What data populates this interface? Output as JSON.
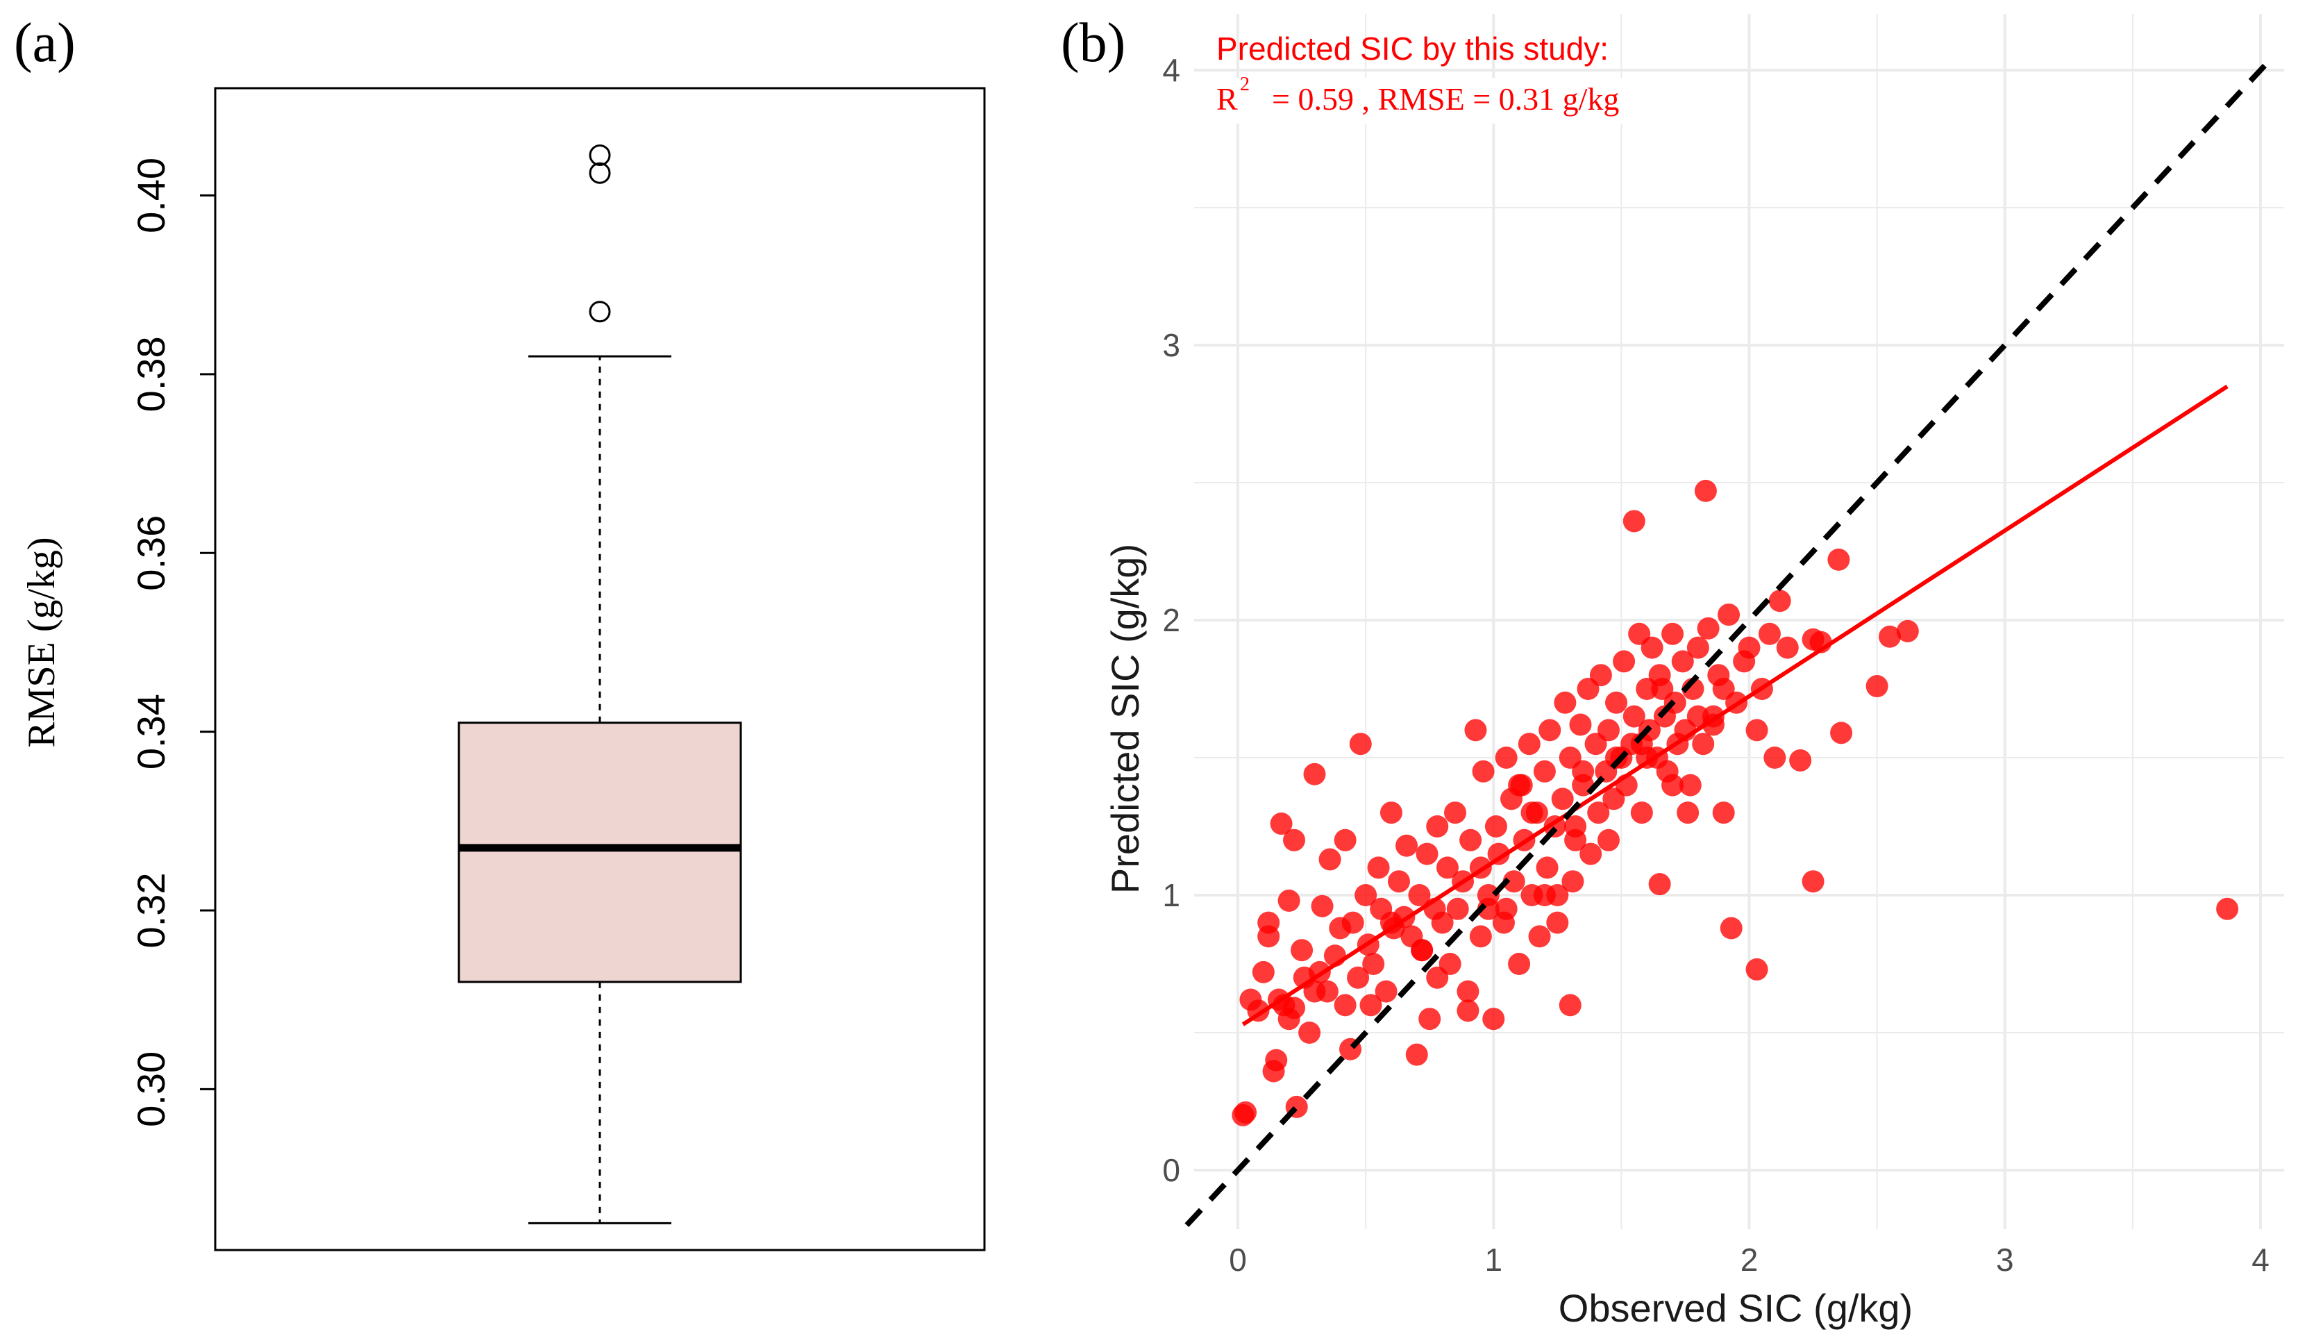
{
  "panel_a": {
    "label": "(a)",
    "ylabel": "RMSE (g/kg)"
  },
  "panel_b": {
    "label": "(b)",
    "xlabel": "Observed SIC (g/kg)",
    "ylabel": "Predicted SIC (g/kg)",
    "annotation_line1": "Predicted SIC by this study:",
    "annotation_r": "R",
    "annotation_sup": "2",
    "annotation_stats": "= 0.59 , RMSE = 0.31 g/kg"
  },
  "colors": {
    "box_fill": "#eed5d2",
    "points": "#ff0000",
    "fit_line": "#ff0000",
    "identity_line": "#000000",
    "grid": "#ebebeb"
  },
  "chart_data": [
    {
      "type": "box",
      "panel": "a",
      "ylabel": "RMSE (g/kg)",
      "ylim": [
        0.282,
        0.412
      ],
      "yticks": [
        0.3,
        0.32,
        0.34,
        0.36,
        0.38,
        0.4
      ],
      "ytick_labels": [
        "0.30",
        "0.32",
        "0.34",
        "0.36",
        "0.38",
        "0.40"
      ],
      "whisker_low": 0.285,
      "q1": 0.312,
      "median": 0.327,
      "q3": 0.341,
      "whisker_high": 0.382,
      "outliers": [
        0.387,
        0.4025,
        0.4045
      ]
    },
    {
      "type": "scatter",
      "panel": "b",
      "xlabel": "Observed SIC (g/kg)",
      "ylabel": "Predicted SIC (g/kg)",
      "xlim": [
        -0.2,
        4.05
      ],
      "ylim": [
        -0.18,
        4.2
      ],
      "xticks": [
        0,
        1,
        2,
        3,
        4
      ],
      "yticks": [
        0,
        1,
        2,
        3,
        4
      ],
      "grid": true,
      "identity_line": {
        "x": [
          -0.2,
          4.05
        ],
        "y": [
          -0.2,
          4.05
        ],
        "style": "dashed"
      },
      "fit_line": {
        "x": [
          0.02,
          3.87
        ],
        "y": [
          0.53,
          2.85
        ]
      },
      "r2": 0.59,
      "rmse": 0.31,
      "points": {
        "x": [
          0.02,
          0.03,
          0.05,
          0.1,
          0.12,
          0.14,
          0.15,
          0.17,
          0.18,
          0.2,
          0.22,
          0.23,
          0.25,
          0.28,
          0.3,
          0.32,
          0.33,
          0.35,
          0.36,
          0.38,
          0.4,
          0.42,
          0.44,
          0.45,
          0.47,
          0.48,
          0.5,
          0.51,
          0.53,
          0.55,
          0.56,
          0.58,
          0.6,
          0.61,
          0.63,
          0.65,
          0.66,
          0.68,
          0.7,
          0.71,
          0.72,
          0.74,
          0.75,
          0.77,
          0.78,
          0.8,
          0.82,
          0.83,
          0.85,
          0.86,
          0.88,
          0.9,
          0.91,
          0.93,
          0.95,
          0.96,
          0.98,
          1.0,
          1.01,
          1.02,
          1.04,
          1.05,
          1.07,
          1.08,
          1.1,
          1.11,
          1.12,
          1.14,
          1.15,
          1.17,
          1.18,
          1.2,
          1.21,
          1.22,
          1.24,
          1.25,
          1.27,
          1.28,
          1.3,
          1.31,
          1.32,
          1.34,
          1.35,
          1.37,
          1.38,
          1.4,
          1.41,
          1.42,
          1.44,
          1.45,
          1.47,
          1.48,
          1.5,
          1.51,
          1.52,
          1.54,
          1.55,
          1.57,
          1.58,
          1.6,
          1.61,
          1.62,
          1.64,
          1.65,
          1.67,
          1.68,
          1.7,
          1.71,
          1.72,
          1.74,
          1.75,
          1.77,
          1.78,
          1.8,
          1.82,
          1.84,
          1.86,
          1.88,
          1.9,
          1.92,
          1.95,
          1.98,
          2.0,
          2.03,
          2.05,
          2.08,
          2.1,
          2.15,
          2.2,
          2.25,
          2.28,
          2.36,
          2.5,
          2.55,
          2.62,
          0.12,
          0.2,
          0.3,
          0.52,
          0.72,
          0.98,
          1.1,
          1.2,
          1.32,
          1.55,
          1.65,
          1.83,
          1.93,
          2.03,
          2.25,
          3.87,
          0.08,
          0.16,
          0.26,
          0.42,
          0.6,
          0.78,
          0.95,
          1.05,
          1.15,
          1.25,
          1.35,
          1.45,
          1.6,
          1.7,
          1.8,
          1.58,
          1.9,
          2.12,
          2.35,
          0.22,
          0.9,
          1.3,
          1.48,
          1.66,
          1.76,
          1.86
        ],
        "y": [
          0.2,
          0.21,
          0.62,
          0.72,
          0.9,
          0.36,
          0.4,
          1.26,
          0.6,
          0.98,
          1.2,
          0.23,
          0.8,
          0.5,
          1.44,
          0.72,
          0.96,
          0.65,
          1.13,
          0.78,
          0.88,
          1.2,
          0.44,
          0.9,
          0.7,
          1.55,
          1.0,
          0.82,
          0.75,
          1.1,
          0.95,
          0.65,
          1.3,
          0.88,
          1.05,
          0.92,
          1.18,
          0.85,
          0.42,
          1.0,
          0.8,
          1.15,
          0.55,
          0.95,
          1.25,
          0.9,
          1.1,
          0.75,
          1.3,
          0.95,
          1.05,
          0.65,
          1.2,
          1.6,
          0.85,
          1.45,
          1.0,
          0.55,
          1.25,
          1.15,
          0.9,
          1.5,
          1.35,
          1.05,
          0.75,
          1.4,
          1.2,
          1.55,
          1.0,
          1.3,
          0.85,
          1.45,
          1.1,
          1.6,
          1.25,
          0.9,
          1.35,
          1.7,
          1.5,
          1.05,
          1.2,
          1.62,
          1.4,
          1.75,
          1.15,
          1.55,
          1.3,
          1.8,
          1.45,
          1.6,
          1.35,
          1.7,
          1.5,
          1.85,
          1.4,
          1.55,
          1.65,
          1.95,
          1.3,
          1.75,
          1.6,
          1.9,
          1.5,
          1.8,
          1.65,
          1.45,
          1.95,
          1.7,
          1.55,
          1.85,
          1.6,
          1.4,
          1.75,
          1.9,
          1.55,
          1.97,
          1.65,
          1.8,
          1.3,
          2.02,
          1.7,
          1.85,
          1.9,
          1.6,
          1.75,
          1.95,
          1.5,
          1.9,
          1.49,
          1.93,
          1.92,
          1.59,
          1.76,
          1.94,
          1.96,
          0.85,
          0.55,
          0.65,
          0.6,
          0.8,
          0.95,
          1.4,
          1.0,
          1.25,
          2.36,
          1.04,
          2.47,
          0.88,
          0.73,
          1.05,
          0.95,
          0.58,
          0.62,
          0.7,
          0.6,
          0.9,
          0.7,
          1.1,
          0.95,
          1.3,
          1.0,
          1.45,
          1.2,
          1.5,
          1.4,
          1.65,
          1.55,
          1.75,
          2.07,
          2.22,
          0.59,
          0.58,
          0.6,
          1.5,
          1.75,
          1.3,
          1.62
        ]
      }
    }
  ]
}
